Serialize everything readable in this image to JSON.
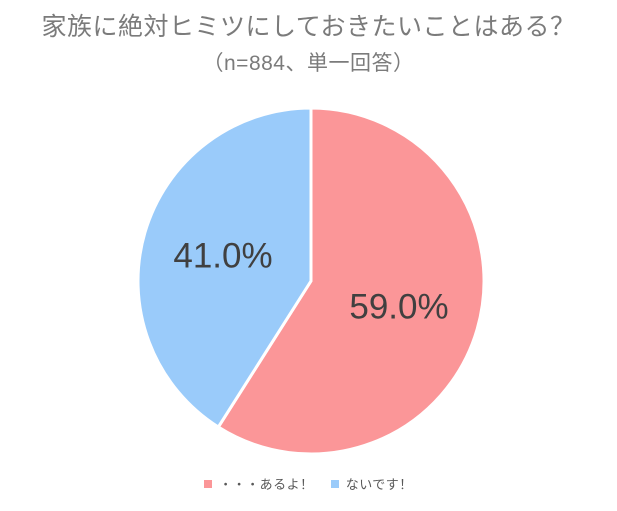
{
  "chart_data": {
    "type": "pie",
    "title": "家族に絶対ヒミツにしておきたいことはある？",
    "subtitle": "（n=884、単一回答）",
    "sample_size": 884,
    "start_angle_deg": 0,
    "direction": "clockwise",
    "legend_position": "bottom",
    "label_color": "#404040",
    "slice_border_color": "#ffffff",
    "background_color": "#ffffff",
    "title_color": "#7b7b7b",
    "slices": [
      {
        "label": "・・・あるよ！",
        "value": 59.0,
        "display": "59.0%",
        "color": "#fb9698"
      },
      {
        "label": "ないです！",
        "value": 41.0,
        "display": "41.0%",
        "color": "#9acbfa"
      }
    ]
  }
}
